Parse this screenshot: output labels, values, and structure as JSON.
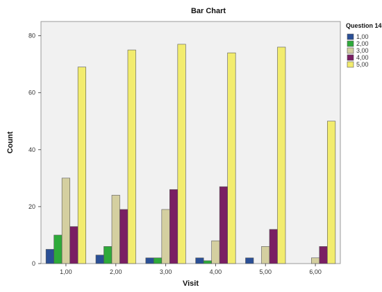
{
  "chart_data": {
    "type": "bar",
    "title": "Bar Chart",
    "xlabel": "Visit",
    "ylabel": "Count",
    "ylim": [
      0,
      85
    ],
    "yticks": [
      0,
      20,
      40,
      60,
      80
    ],
    "categories": [
      "1,00",
      "2,00",
      "3,00",
      "4,00",
      "5,00",
      "6,00"
    ],
    "legend": {
      "title": "Question 14",
      "placement": "right"
    },
    "series": [
      {
        "name": "1,00",
        "color": "#2a4f96",
        "values": [
          5,
          3,
          2,
          2,
          2,
          0
        ]
      },
      {
        "name": "2,00",
        "color": "#2eaa3a",
        "values": [
          10,
          6,
          2,
          1,
          0,
          0
        ]
      },
      {
        "name": "3,00",
        "color": "#d4cfa0",
        "values": [
          30,
          24,
          19,
          8,
          6,
          2
        ]
      },
      {
        "name": "4,00",
        "color": "#7a1f63",
        "values": [
          13,
          19,
          26,
          27,
          12,
          6
        ]
      },
      {
        "name": "5,00",
        "color": "#f2ec6e",
        "values": [
          69,
          75,
          77,
          74,
          76,
          50
        ]
      }
    ],
    "plot_background": "#f1f1f1",
    "grid": false
  }
}
